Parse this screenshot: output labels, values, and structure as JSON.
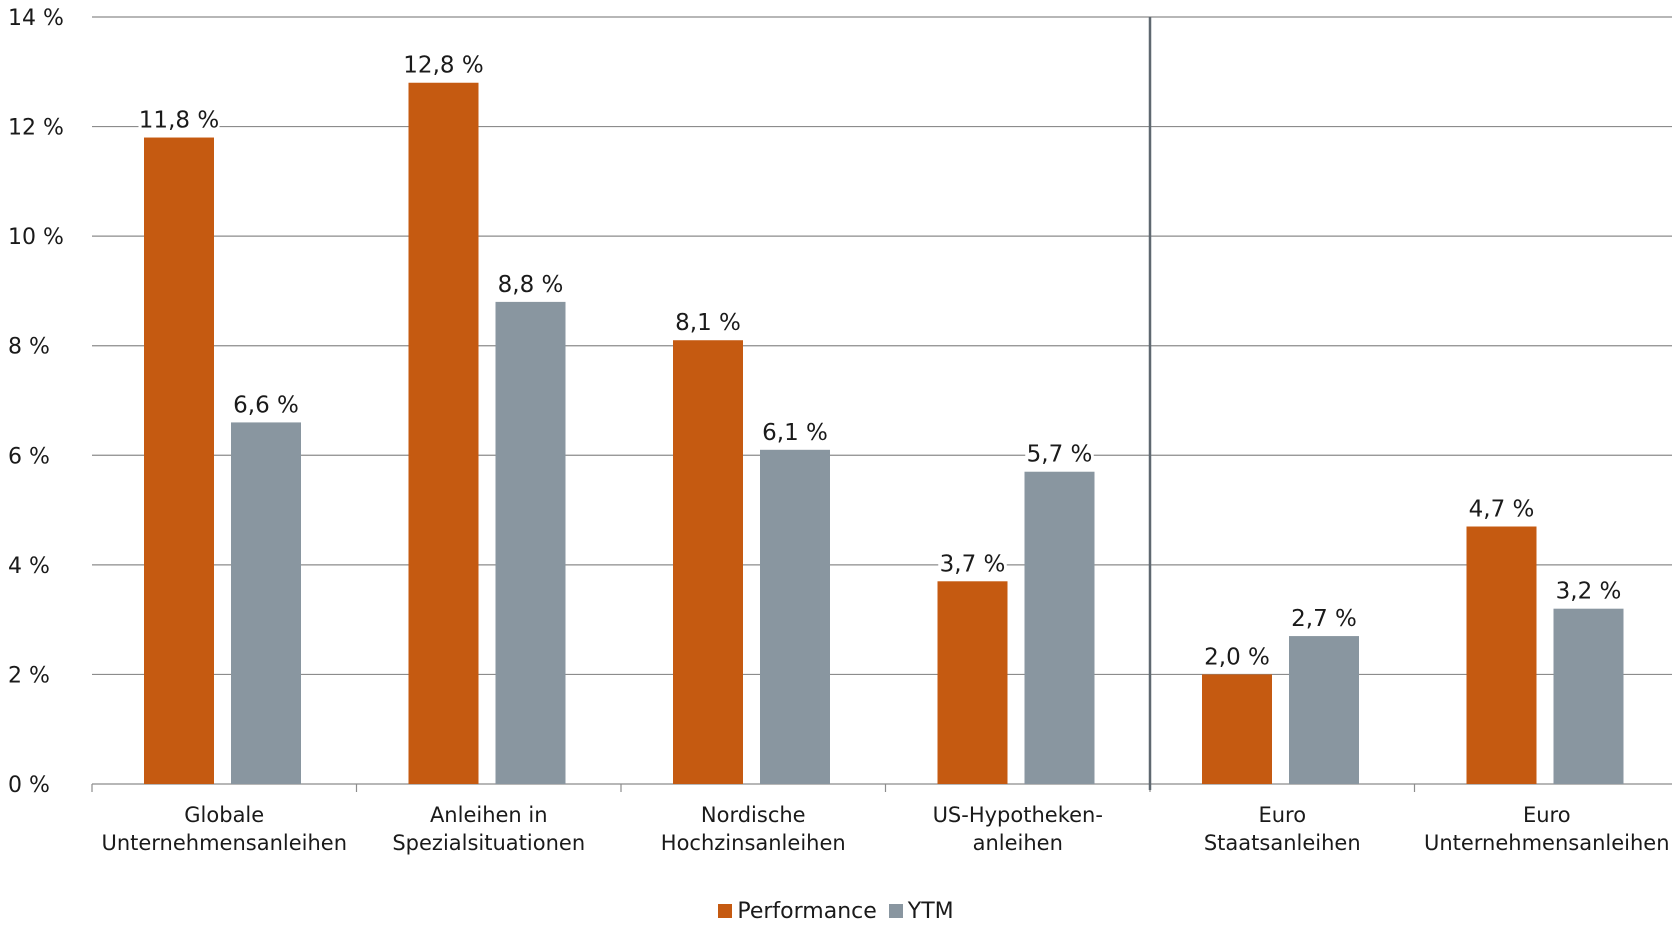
{
  "chart_data": {
    "type": "bar",
    "categories": [
      [
        "Globale",
        "Unternehmensanleihen"
      ],
      [
        "Anleihen in",
        "Spezialsituationen"
      ],
      [
        "Nordische",
        "Hochzinsanleihen"
      ],
      [
        "US-Hypotheken-",
        "anleihen"
      ],
      [
        "Euro",
        "Staatsanleihen"
      ],
      [
        "Euro",
        "Unternehmensanleihen"
      ]
    ],
    "series": [
      {
        "name": "Performance",
        "color": "#c55a11",
        "values": [
          11.8,
          12.8,
          8.1,
          3.7,
          2.0,
          4.7
        ],
        "labels": [
          "11,8 %",
          "12,8 %",
          "8,1 %",
          "3,7 %",
          "2,0 %",
          "4,7 %"
        ]
      },
      {
        "name": "YTM",
        "color": "#8996a0",
        "values": [
          6.6,
          8.8,
          6.1,
          5.7,
          2.7,
          3.2
        ],
        "labels": [
          "6,6 %",
          "8,8 %",
          "6,1 %",
          "5,7 %",
          "2,7 %",
          "3,2 %"
        ]
      }
    ],
    "ylim": [
      0,
      14
    ],
    "yticks": [
      0,
      2,
      4,
      6,
      8,
      10,
      12,
      14
    ],
    "ytick_labels": [
      "0 %",
      "2 %",
      "4 %",
      "6 %",
      "8 %",
      "10 %",
      "12 %",
      "14 %"
    ],
    "separator_after_category": 4,
    "grid": true,
    "legend_position": "bottom-center"
  }
}
